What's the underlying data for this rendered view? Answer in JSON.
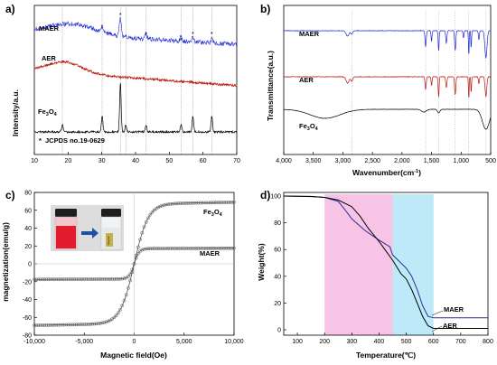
{
  "chart_data": [
    {
      "panel": "a)",
      "type": "line",
      "xlabel": "",
      "ylabel": "Intensity/a.u.",
      "xlim": [
        10,
        70
      ],
      "xticks": [
        "10",
        "20",
        "30",
        "40",
        "50",
        "60",
        "70"
      ],
      "series": [
        {
          "name": "MAER",
          "color": "#1f2bd6",
          "peaks": [
            30.1,
            35.5,
            43.1,
            53.5,
            57.0,
            62.6
          ]
        },
        {
          "name": "AER",
          "color": "#b81b14"
        },
        {
          "name": "Fe3O4",
          "color": "#000000",
          "peaks": [
            18.3,
            30.1,
            35.5,
            37.1,
            43.1,
            53.5,
            57.0,
            62.6
          ]
        }
      ],
      "reference": {
        "name": "JCPDS no.19-0629",
        "color": "#808080",
        "peaks": [
          18.3,
          30.1,
          35.5,
          37.1,
          43.1,
          53.5,
          57.0,
          62.6
        ]
      },
      "grid": false
    },
    {
      "panel": "b)",
      "type": "line",
      "xlabel": "Wavenumber(cm⁻¹)",
      "ylabel": "Transmittance(a.u.)",
      "xlim": [
        4000,
        500
      ],
      "xticks": [
        "4,000",
        "3,500",
        "3,000",
        "2,500",
        "2,000",
        "1,500",
        "1,000",
        "500"
      ],
      "series": [
        {
          "name": "MAER",
          "color": "#1f2bd6"
        },
        {
          "name": "AER",
          "color": "#b81b14"
        },
        {
          "name": "Fe3O4",
          "color": "#000000"
        }
      ],
      "reference_lines_cm": [
        2850,
        1600,
        1380,
        1100,
        870,
        580
      ],
      "grid": false
    },
    {
      "panel": "c)",
      "type": "line",
      "xlabel": "Magnetic field(Oe)",
      "ylabel": "magnetization(emu/g)",
      "xlim": [
        -10000,
        10000
      ],
      "ylim": [
        -80,
        80
      ],
      "xticks": [
        "-10,000",
        "-5,000",
        "0",
        "5,000",
        "10,000"
      ],
      "yticks": [
        "-80",
        "-60",
        "-40",
        "-20",
        "0",
        "20",
        "40",
        "60",
        "80"
      ],
      "series": [
        {
          "name": "Fe3O4",
          "color": "#555555",
          "ms": 67
        },
        {
          "name": "MAER",
          "color": "#555555",
          "ms": 17
        }
      ],
      "grid": false
    },
    {
      "panel": "d)",
      "type": "line",
      "xlabel": "Temperature(℃)",
      "ylabel": "Weight(%)",
      "xlim": [
        50,
        800
      ],
      "ylim": [
        0,
        100
      ],
      "xticks": [
        "100",
        "200",
        "300",
        "400",
        "500",
        "600",
        "700",
        "800"
      ],
      "yticks": [
        "0",
        "20",
        "40",
        "60",
        "80",
        "100"
      ],
      "bands": [
        {
          "from": 200,
          "to": 450,
          "color": "#f7c4e6"
        },
        {
          "from": 450,
          "to": 600,
          "color": "#bde9f8"
        }
      ],
      "series": [
        {
          "name": "MAER",
          "color": "#2b2f8f",
          "x": [
            50,
            150,
            200,
            250,
            270,
            300,
            350,
            400,
            440,
            450,
            480,
            500,
            520,
            540,
            560,
            580,
            600,
            650,
            700,
            800
          ],
          "y": [
            100,
            99.6,
            99,
            96,
            91,
            83,
            74,
            67,
            62,
            56,
            50,
            46,
            40,
            30,
            18,
            10,
            9,
            9,
            9,
            9
          ]
        },
        {
          "name": "AER",
          "color": "#000000",
          "x": [
            50,
            150,
            200,
            250,
            300,
            330,
            360,
            400,
            450,
            480,
            500,
            520,
            540,
            560,
            580,
            600,
            650,
            700,
            800
          ],
          "y": [
            100,
            99.7,
            99,
            97,
            92,
            85,
            76,
            66,
            52,
            42,
            38,
            30,
            20,
            10,
            3,
            1,
            1,
            1,
            1
          ]
        }
      ],
      "grid": false
    }
  ],
  "labels": {
    "a": {
      "letter": "a)",
      "ylabel": "Intensity/a.u.",
      "maer": "MAER",
      "aer": "AER",
      "fe3o4_main": "Fe",
      "fe3o4_sub1": "3",
      "fe3o4_o": "O",
      "fe3o4_sub2": "4",
      "ref_legend": "JCPDS no.19-0629",
      "ref_marker": "*"
    },
    "b": {
      "letter": "b)",
      "ylabel": "Transmittance(a.u.)",
      "xlabel_main": "Wavenumber(cm",
      "xlabel_sup": "-1",
      "xlabel_end": ")",
      "maer": "MAER",
      "aer": "AER",
      "fe3o4_main": "Fe",
      "fe3o4_sub1": "3",
      "fe3o4_o": "O",
      "fe3o4_sub2": "4"
    },
    "c": {
      "letter": "c)",
      "ylabel": "magnetization(emu/g)",
      "xlabel": "Magnetic field(Oe)",
      "maer": "MAER",
      "fe3o4_main": "Fe",
      "fe3o4_sub1": "3",
      "fe3o4_o": "O",
      "fe3o4_sub2": "4",
      "inset_alt": "vials: dispersion before and after magnetic separation",
      "magnet_text": "Magnet"
    },
    "d": {
      "letter": "d)",
      "ylabel": "Weight(%)",
      "xlabel": "Temperature(℃)",
      "maer": "MAER",
      "aer": "AER"
    }
  }
}
